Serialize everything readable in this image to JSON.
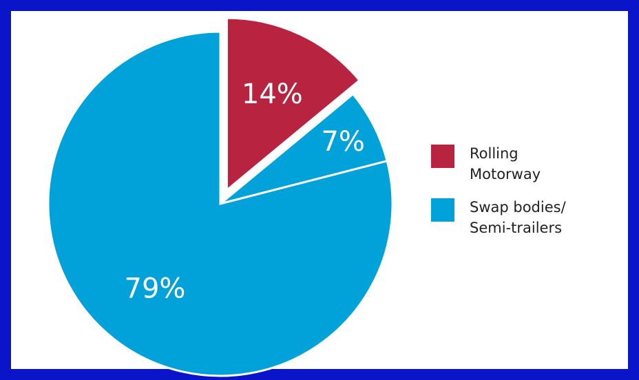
{
  "chart_data": {
    "type": "pie",
    "slices": [
      {
        "label": "14%",
        "value": 14,
        "color": "#b8233f",
        "exploded": true
      },
      {
        "label": "7%",
        "value": 7,
        "color": "#00a2d9",
        "exploded": false
      },
      {
        "label": "79%",
        "value": 79,
        "color": "#00a2d9",
        "exploded": false
      }
    ],
    "legend": {
      "placement": "right",
      "items": [
        {
          "lines": [
            "Rolling",
            "Motorway"
          ],
          "color": "#b8233f"
        },
        {
          "lines": [
            "Swap bodies/",
            "Semi-trailers"
          ],
          "color": "#00a2d9"
        }
      ]
    }
  }
}
